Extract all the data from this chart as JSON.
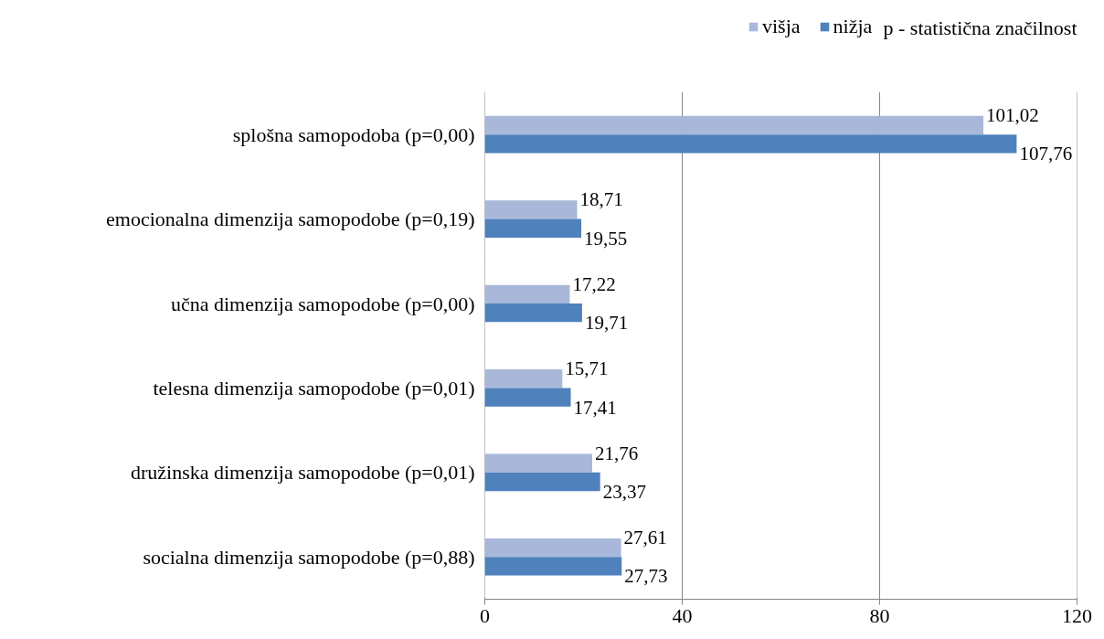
{
  "chart_data": {
    "type": "bar",
    "orientation": "horizontal",
    "categories": [
      "splošna samopodoba (p=0,00)",
      "emocionalna dimenzija samopodobe (p=0,19)",
      "učna dimenzija samopodobe (p=0,00)",
      "telesna dimenzija samopodobe (p=0,01)",
      "družinska dimenzija samopodobe (p=0,01)",
      "socialna dimenzija samopodobe (p=0,88)"
    ],
    "series": [
      {
        "name": "višja",
        "color": "#a9b8da",
        "values": [
          101.02,
          18.71,
          17.22,
          15.71,
          21.76,
          27.61
        ],
        "value_labels": [
          "101,02",
          "18,71",
          "17,22",
          "15,71",
          "21,76",
          "27,61"
        ]
      },
      {
        "name": "nižja",
        "color": "#4f81bd",
        "values": [
          107.76,
          19.55,
          19.71,
          17.41,
          23.37,
          27.73
        ],
        "value_labels": [
          "107,76",
          "19,55",
          "19,71",
          "17,41",
          "23,37",
          "27,73"
        ]
      }
    ],
    "xlim": [
      0,
      120
    ],
    "xticks": [
      0,
      40,
      80,
      120
    ],
    "grid": "x",
    "legend": "top right",
    "annotations": [
      "p - statistična značilnost"
    ]
  }
}
